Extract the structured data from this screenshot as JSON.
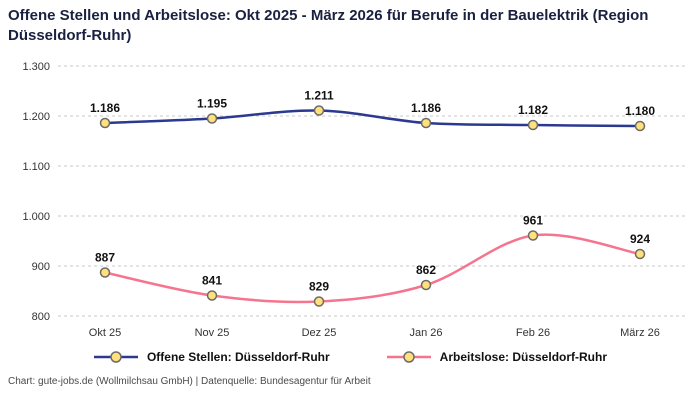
{
  "title": "Offene Stellen und Arbeitslose: Okt 2025 - März 2026 für Berufe in der Bauelektrik (Region Düsseldorf-Ruhr)",
  "footer": "Chart: gute-jobs.de (Wollmilchsau GmbH) | Datenquelle: Bundesagentur für Arbeit",
  "chart_data": {
    "type": "line",
    "title": "Offene Stellen und Arbeitslose: Okt 2025 - März 2026 für Berufe in der Bauelektrik (Region Düsseldorf-Ruhr)",
    "categories": [
      "Okt 25",
      "Nov 25",
      "Dez 25",
      "Jan 26",
      "Feb 26",
      "März 26"
    ],
    "series": [
      {
        "name": "Offene Stellen: Düsseldorf-Ruhr",
        "color": "#2b3990",
        "values": [
          1186,
          1195,
          1211,
          1186,
          1182,
          1180
        ],
        "labels": [
          "1.186",
          "1.195",
          "1.211",
          "1.186",
          "1.182",
          "1.180"
        ]
      },
      {
        "name": "Arbeitslose: Düsseldorf-Ruhr",
        "color": "#f5758f",
        "values": [
          887,
          841,
          829,
          862,
          961,
          924
        ],
        "labels": [
          "887",
          "841",
          "829",
          "862",
          "961",
          "924"
        ]
      }
    ],
    "ylim": [
      800,
      1300
    ],
    "yticks": [
      800,
      900,
      1000,
      1100,
      1200,
      1300
    ],
    "ytick_labels": [
      "800",
      "900",
      "1.000",
      "1.100",
      "1.200",
      "1.300"
    ],
    "xlabel": "",
    "ylabel": "",
    "grid": "horizontal-dashed",
    "legend_position": "bottom",
    "marker": {
      "fill": "#ffe07a",
      "stroke": "#6b6b6b"
    }
  }
}
